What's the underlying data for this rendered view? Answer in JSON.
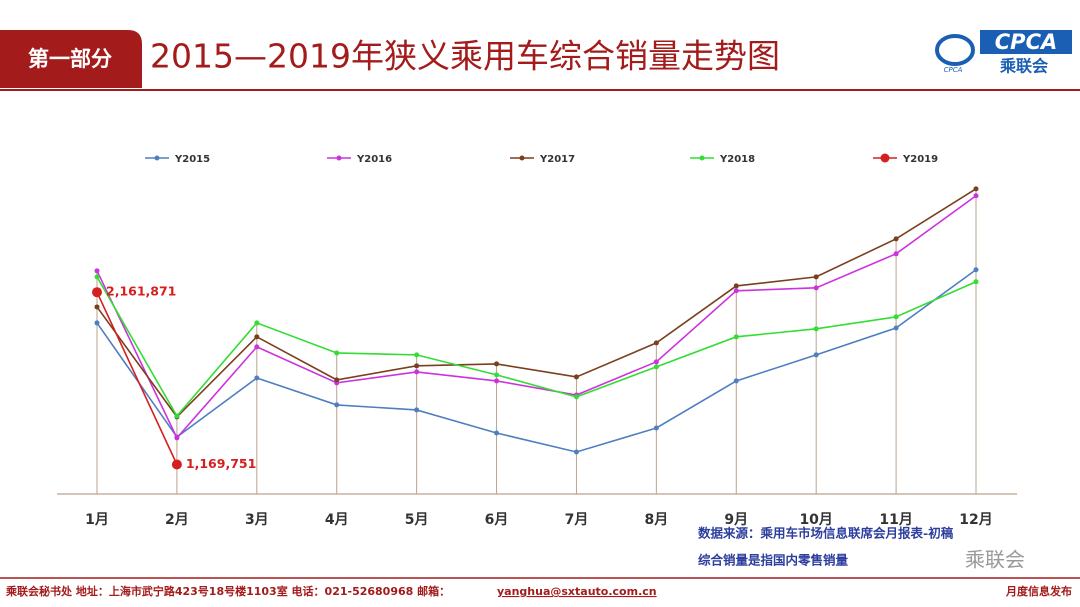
{
  "header": {
    "section": "第一部分",
    "title": "2015—2019年狭义乘用车综合销量走势图",
    "logo_main": "CPCA",
    "logo_sub": "乘联会",
    "logo_mark": "CPCA"
  },
  "chart_data": {
    "type": "line",
    "categories": [
      "1月",
      "2月",
      "3月",
      "4月",
      "5月",
      "6月",
      "7月",
      "8月",
      "9月",
      "10月",
      "11月",
      "12月"
    ],
    "ylim": [
      1000000,
      2900000
    ],
    "series": [
      {
        "name": "Y2015",
        "color": "#4f7fc0",
        "values": [
          1985000,
          1328000,
          1668000,
          1513000,
          1484000,
          1351000,
          1242000,
          1380000,
          1651000,
          1801000,
          1956000,
          2291000
        ]
      },
      {
        "name": "Y2016",
        "color": "#cc33dd",
        "values": [
          2285000,
          1323000,
          1847000,
          1640000,
          1703000,
          1651000,
          1570000,
          1761000,
          2170000,
          2187000,
          2383000,
          2717000
        ]
      },
      {
        "name": "Y2017",
        "color": "#7b3f1e",
        "values": [
          2077000,
          1444000,
          1905000,
          1657000,
          1738000,
          1749000,
          1674000,
          1870000,
          2198000,
          2250000,
          2469000,
          2757000
        ]
      },
      {
        "name": "Y2018",
        "color": "#33dd33",
        "values": [
          2250000,
          1449000,
          1985000,
          1812000,
          1801000,
          1686000,
          1559000,
          1732000,
          1905000,
          1951000,
          2020000,
          2222000
        ]
      },
      {
        "name": "Y2019",
        "color": "#d42020",
        "values": [
          2161871,
          1169751,
          null,
          null,
          null,
          null,
          null,
          null,
          null,
          null,
          null,
          null
        ],
        "value_labels": [
          "2,161,871",
          "1,169,751",
          null,
          null,
          null,
          null,
          null,
          null,
          null,
          null,
          null,
          null
        ]
      }
    ]
  },
  "notes": [
    "数据来源：乘用车市场信息联席会月报表-初稿",
    "综合销量是指国内零售销量"
  ],
  "watermark": "乘联会",
  "footer": {
    "contact": "乘联会秘书处   地址：上海市武宁路423号18号楼1103室  电话：021-52680968   邮箱：",
    "email": "yanghua@sxtauto.com.cn",
    "right": "月度信息发布"
  }
}
